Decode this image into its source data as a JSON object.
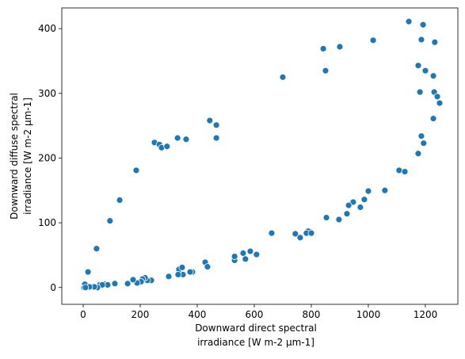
{
  "chart_data": {
    "type": "scatter",
    "xlabel": [
      "Downward direct spectral",
      "irradiance [W m-2 μm-1]"
    ],
    "ylabel": [
      "Downward diffuse spectral",
      "irradiance [W m-2 μm-1]"
    ],
    "color": "#1f77b4",
    "x": [
      17,
      47,
      94,
      128,
      186,
      250,
      267,
      275,
      294,
      331,
      361,
      444,
      467,
      467,
      700,
      842,
      850,
      900,
      1017,
      1142,
      1192,
      1186,
      1233,
      1175,
      1200,
      1228,
      1181,
      1231,
      1242,
      1250,
      1228,
      1186,
      1194,
      1175,
      1108,
      1128,
      1058,
      1000,
      986,
      947,
      931,
      972,
      925,
      897,
      853,
      797,
      789,
      783,
      800,
      744,
      761,
      661,
      608,
      586,
      561,
      569,
      531,
      531,
      428,
      436,
      383,
      375,
      350,
      336,
      347,
      333,
      300,
      239,
      225,
      217,
      208,
      203,
      189,
      175,
      156,
      111,
      75,
      58,
      42,
      31,
      11,
      3,
      6,
      86,
      67,
      50,
      39,
      22,
      8
    ],
    "y": [
      24,
      60,
      103,
      135,
      181,
      224,
      221,
      216,
      218,
      231,
      229,
      258,
      251,
      231,
      325,
      369,
      335,
      372,
      382,
      411,
      406,
      383,
      379,
      343,
      335,
      327,
      302,
      302,
      295,
      285,
      261,
      234,
      223,
      207,
      181,
      179,
      150,
      149,
      136,
      132,
      127,
      124,
      114,
      105,
      108,
      86,
      87,
      84,
      84,
      83,
      77,
      84,
      51,
      56,
      53,
      44,
      42,
      48,
      39,
      32,
      24,
      24,
      20,
      28,
      31,
      20,
      17,
      11,
      11,
      15,
      13,
      9,
      7,
      12,
      6,
      6,
      5,
      4,
      1,
      1,
      1,
      0,
      5,
      4,
      4,
      0,
      1,
      1,
      0
    ],
    "xlim": [
      -75,
      1314
    ],
    "ylim": [
      -26,
      432
    ],
    "xticks": [
      0,
      200,
      400,
      600,
      800,
      1000,
      1200
    ],
    "yticks": [
      0,
      100,
      200,
      300,
      400
    ]
  }
}
